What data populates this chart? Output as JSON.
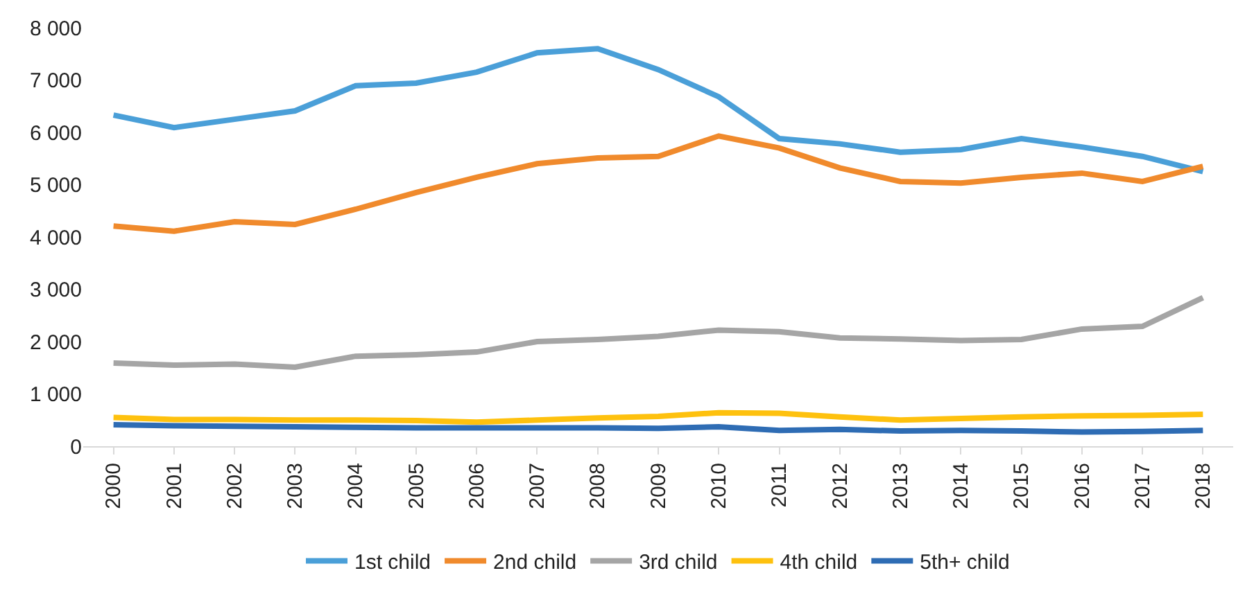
{
  "chart_data": {
    "type": "line",
    "categories": [
      "2000",
      "2001",
      "2002",
      "2003",
      "2004",
      "2005",
      "2006",
      "2007",
      "2008",
      "2009",
      "2010",
      "2011",
      "2012",
      "2013",
      "2014",
      "2015",
      "2016",
      "2017",
      "2018"
    ],
    "series": [
      {
        "name": "1st child",
        "color": "#4a9fd8",
        "values": [
          6330,
          6090,
          6250,
          6410,
          6890,
          6940,
          7150,
          7520,
          7600,
          7200,
          6680,
          5880,
          5780,
          5620,
          5670,
          5880,
          5720,
          5540,
          5250
        ]
      },
      {
        "name": "2nd child",
        "color": "#f08a2c",
        "values": [
          4210,
          4110,
          4290,
          4240,
          4530,
          4850,
          5140,
          5400,
          5510,
          5540,
          5930,
          5700,
          5320,
          5060,
          5030,
          5140,
          5220,
          5060,
          5350
        ]
      },
      {
        "name": "3rd child",
        "color": "#a5a5a5",
        "values": [
          1590,
          1550,
          1570,
          1510,
          1720,
          1750,
          1800,
          2000,
          2040,
          2100,
          2220,
          2190,
          2070,
          2050,
          2020,
          2040,
          2240,
          2290,
          2840
        ]
      },
      {
        "name": "4th child",
        "color": "#fec10e",
        "values": [
          550,
          510,
          510,
          500,
          500,
          490,
          460,
          500,
          540,
          570,
          640,
          630,
          560,
          500,
          530,
          560,
          580,
          590,
          610
        ]
      },
      {
        "name": "5th+ child",
        "color": "#2e6cb4",
        "values": [
          410,
          390,
          380,
          370,
          360,
          350,
          350,
          350,
          350,
          340,
          370,
          300,
          320,
          290,
          300,
          290,
          270,
          280,
          300
        ]
      }
    ],
    "ylim": [
      0,
      8000
    ],
    "yticks": [
      0,
      {
        "value": 1000,
        "label": "1 000"
      },
      {
        "value": 2000,
        "label": "2 000"
      },
      {
        "value": 3000,
        "label": "3 000"
      },
      {
        "value": 4000,
        "label": "4 000"
      },
      {
        "value": 5000,
        "label": "5 000"
      },
      {
        "value": 6000,
        "label": "6 000"
      },
      {
        "value": 7000,
        "label": "7 000"
      },
      {
        "value": 8000,
        "label": "8 000"
      }
    ],
    "grid": false,
    "legend": "bottom",
    "marker": "none",
    "line_style": "solid"
  }
}
